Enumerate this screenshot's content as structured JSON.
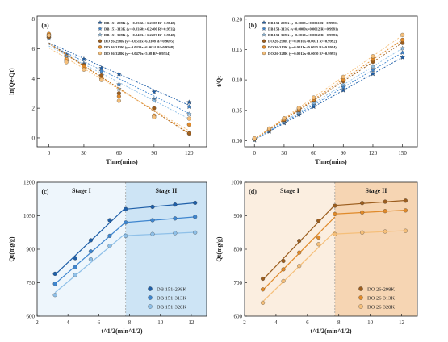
{
  "chart_data": [
    {
      "id": "a",
      "type": "scatter",
      "panel_label": "(a)",
      "xlabel": "Time(mins)",
      "ylabel": "ln(Qe-Qt)",
      "xlim": [
        -10,
        135
      ],
      "ylim": [
        -0.6,
        8.2
      ],
      "xticks": [
        0,
        30,
        60,
        90,
        120
      ],
      "yticks": [
        0,
        2,
        4,
        6,
        8
      ],
      "legend_position": "top-right",
      "series": [
        {
          "name": "DB 151-298K (y=-0.0302x+6.2108 R²=0.9848)",
          "color": "#1f5fa8",
          "marker": "star",
          "x": [
            0,
            15,
            30,
            45,
            60,
            90,
            120
          ],
          "y": [
            6.8,
            5.6,
            5.3,
            4.7,
            4.3,
            3.1,
            2.4
          ]
        },
        {
          "name": "DB 151-313K (y=-0.0350x+6.2400 R²=0.9532)",
          "color": "#3f86cf",
          "marker": "star",
          "x": [
            0,
            15,
            30,
            45,
            60,
            90,
            120
          ],
          "y": [
            6.9,
            5.5,
            5.0,
            4.5,
            3.6,
            2.6,
            2.1
          ]
        },
        {
          "name": "DB 151-328K (y=-0.0403x+6.2207 R²=0.9848)",
          "color": "#8fc0e8",
          "marker": "star",
          "x": [
            0,
            15,
            30,
            45,
            60,
            90,
            120
          ],
          "y": [
            6.7,
            5.4,
            4.9,
            4.2,
            3.3,
            2.5,
            1.6
          ]
        },
        {
          "name": "DO 26-298K (y=-0.0513x+6.3308 R²=0.9695)",
          "color": "#9b5d1e",
          "marker": "circle",
          "x": [
            0,
            15,
            30,
            45,
            60,
            90,
            120
          ],
          "y": [
            6.8,
            5.2,
            4.9,
            4.2,
            3.0,
            2.0,
            0.3
          ]
        },
        {
          "name": "DO 26-313K (y=-0.0433x+6.0634 R²=0.9508)",
          "color": "#e08a2a",
          "marker": "circle",
          "x": [
            0,
            15,
            30,
            45,
            60,
            90,
            120
          ],
          "y": [
            7.0,
            5.3,
            4.8,
            4.0,
            2.8,
            1.5,
            0.9
          ]
        },
        {
          "name": "DO 26-328K (y=-0.0479x+5.98 R²=0.9514)",
          "color": "#f5bf7a",
          "marker": "circle",
          "x": [
            0,
            15,
            30,
            45,
            60,
            90,
            120
          ],
          "y": [
            6.9,
            5.1,
            4.6,
            3.9,
            2.5,
            1.4,
            1.3
          ]
        }
      ]
    },
    {
      "id": "b",
      "type": "scatter",
      "panel_label": "(b)",
      "xlabel": "Time(mins)",
      "ylabel": "t/Qt",
      "xlim": [
        -10,
        165
      ],
      "ylim": [
        -0.01,
        0.205
      ],
      "xticks": [
        0,
        30,
        60,
        90,
        120,
        150
      ],
      "yticks": [
        0.0,
        0.05,
        0.1,
        0.15,
        0.2
      ],
      "legend_position": "top-left",
      "series": [
        {
          "name": "DB 151-298K (y=0.0009x+0.0011 R²=0.9981)",
          "color": "#1f5fa8",
          "marker": "star",
          "x": [
            0,
            15,
            30,
            45,
            60,
            90,
            120,
            150
          ],
          "y": [
            0.001,
            0.015,
            0.029,
            0.043,
            0.056,
            0.083,
            0.11,
            0.137
          ]
        },
        {
          "name": "DB 151-313K (y=0.0009x+0.0012 R²=0.9981)",
          "color": "#3f86cf",
          "marker": "star",
          "x": [
            0,
            15,
            30,
            45,
            60,
            90,
            120,
            150
          ],
          "y": [
            0.001,
            0.016,
            0.03,
            0.045,
            0.059,
            0.088,
            0.116,
            0.145
          ]
        },
        {
          "name": "DB 151-328K (y=0.0010x+0.0012 R²=0.9981)",
          "color": "#8fc0e8",
          "marker": "star",
          "x": [
            0,
            15,
            30,
            45,
            60,
            90,
            120,
            150
          ],
          "y": [
            0.001,
            0.017,
            0.032,
            0.047,
            0.062,
            0.092,
            0.122,
            0.152
          ]
        },
        {
          "name": "DO 26-298K (y=0.0010x+0.0031 R²=0.9992)",
          "color": "#9b5d1e",
          "marker": "circle",
          "x": [
            0,
            15,
            30,
            45,
            60,
            90,
            120,
            150
          ],
          "y": [
            0.003,
            0.018,
            0.034,
            0.05,
            0.066,
            0.098,
            0.13,
            0.161
          ]
        },
        {
          "name": "DO 26-313K (y=0.0011x+0.0035 R²=0.9994)",
          "color": "#e08a2a",
          "marker": "circle",
          "x": [
            0,
            15,
            30,
            45,
            60,
            90,
            120,
            150
          ],
          "y": [
            0.003,
            0.019,
            0.035,
            0.052,
            0.068,
            0.101,
            0.134,
            0.166
          ]
        },
        {
          "name": "DO 26-328K (y=0.0012x+0.0030 R²=0.9995)",
          "color": "#f5bf7a",
          "marker": "circle",
          "x": [
            0,
            15,
            30,
            45,
            60,
            90,
            120,
            150
          ],
          "y": [
            0.004,
            0.02,
            0.037,
            0.054,
            0.071,
            0.105,
            0.139,
            0.174
          ]
        }
      ]
    },
    {
      "id": "c",
      "type": "line",
      "panel_label": "(c)",
      "xlabel": "t^1/2(min^1/2)",
      "ylabel": "Qt(mg/g)",
      "xlim": [
        2,
        13
      ],
      "ylim": [
        600,
        1200
      ],
      "xticks": [
        2,
        4,
        6,
        8,
        10,
        12
      ],
      "yticks": [
        600,
        750,
        900,
        1050,
        1200
      ],
      "stages": [
        {
          "label": "Stage I",
          "from": 2,
          "to": 7.75,
          "color": "#eef6fc"
        },
        {
          "label": "Stage II",
          "from": 7.75,
          "to": 13,
          "color": "#cde4f5"
        }
      ],
      "legend_position": "bottom-right",
      "series": [
        {
          "name": "DB 151-298K",
          "color": "#1f5fa8",
          "x": [
            3.16,
            4.47,
            5.48,
            6.71,
            7.75,
            9.49,
            10.95,
            12.25
          ],
          "y": [
            790,
            860,
            940,
            1030,
            1080,
            1090,
            1100,
            1108
          ]
        },
        {
          "name": "DB 151-313K",
          "color": "#3f86cf",
          "x": [
            3.16,
            4.47,
            5.48,
            6.71,
            7.75,
            9.49,
            10.95,
            12.25
          ],
          "y": [
            745,
            820,
            890,
            960,
            1020,
            1030,
            1038,
            1045
          ]
        },
        {
          "name": "DB 151-328K",
          "color": "#8fc0e8",
          "x": [
            3.16,
            4.47,
            5.48,
            6.71,
            7.75,
            9.49,
            10.95,
            12.25
          ],
          "y": [
            695,
            785,
            855,
            915,
            960,
            968,
            972,
            975
          ]
        }
      ]
    },
    {
      "id": "d",
      "type": "line",
      "panel_label": "(d)",
      "xlabel": "t^1/2(min^1/2)",
      "ylabel": "Qt(mg/g)",
      "xlim": [
        2,
        13
      ],
      "ylim": [
        600,
        1000
      ],
      "xticks": [
        2,
        4,
        6,
        8,
        10,
        12
      ],
      "yticks": [
        600,
        700,
        800,
        900,
        1000
      ],
      "stages": [
        {
          "label": "Stage I",
          "from": 2,
          "to": 7.75,
          "color": "#fbeee0"
        },
        {
          "label": "Stage II",
          "from": 7.75,
          "to": 13,
          "color": "#f6d5b3"
        }
      ],
      "legend_position": "bottom-right",
      "series": [
        {
          "name": "DO 26-298K",
          "color": "#9b5d1e",
          "x": [
            3.16,
            4.47,
            5.48,
            6.71,
            7.75,
            9.49,
            10.95,
            12.25
          ],
          "y": [
            712,
            765,
            825,
            885,
            930,
            938,
            942,
            945
          ]
        },
        {
          "name": "DO 26-313K",
          "color": "#e08a2a",
          "x": [
            3.16,
            4.47,
            5.48,
            6.71,
            7.75,
            9.49,
            10.95,
            12.25
          ],
          "y": [
            680,
            740,
            790,
            835,
            905,
            910,
            914,
            916
          ]
        },
        {
          "name": "DO 26-328K",
          "color": "#f5bf7a",
          "x": [
            3.16,
            4.47,
            5.48,
            6.71,
            7.75,
            9.49,
            10.95,
            12.25
          ],
          "y": [
            640,
            705,
            750,
            815,
            845,
            850,
            853,
            855
          ]
        }
      ]
    }
  ]
}
